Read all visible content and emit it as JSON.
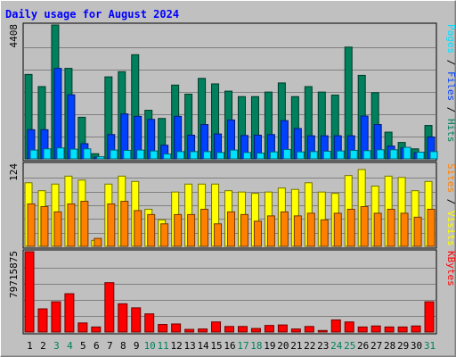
{
  "chart_data": {
    "type": "bar",
    "title": "Daily usage for August 2024",
    "categories": [
      "1",
      "2",
      "3",
      "4",
      "5",
      "6",
      "7",
      "8",
      "9",
      "10",
      "11",
      "12",
      "13",
      "14",
      "15",
      "16",
      "17",
      "18",
      "19",
      "20",
      "21",
      "22",
      "23",
      "24",
      "25",
      "26",
      "27",
      "28",
      "29",
      "30",
      "31"
    ],
    "weekend_days": [
      3,
      4,
      10,
      11,
      17,
      18,
      24,
      25,
      31
    ],
    "colors": {
      "hits": "#00805c",
      "files": "#0040ff",
      "pages": "#00e0ff",
      "visits": "#ffff00",
      "sites": "#ff8000",
      "kbytes": "#ff0000",
      "weekend_label": "#00805c",
      "weekday_label": "#000000",
      "title": "#0000ff"
    },
    "panels": [
      {
        "id": "top",
        "ymax": 4408,
        "ymax_label": "4408",
        "right_label": [
          "Pages",
          " / ",
          "Files",
          " / ",
          "Hits"
        ],
        "right_label_colors": [
          "#00e0ff",
          "#000000",
          "#0040ff",
          "#000000",
          "#00805c"
        ],
        "series": [
          {
            "name": "Hits",
            "values": [
              2780,
              2380,
              4408,
              2980,
              1370,
              170,
              2700,
              2870,
              3430,
              1600,
              1330,
              2430,
              2130,
              2650,
              2470,
              2230,
              2050,
              2050,
              2200,
              2500,
              2050,
              2380,
              2200,
              2100,
              3680,
              2750,
              2180,
              880,
              540,
              330,
              1100
            ]
          },
          {
            "name": "Files",
            "values": [
              960,
              960,
              2980,
              2110,
              500,
              60,
              800,
              1480,
              1400,
              1300,
              450,
              1400,
              780,
              1130,
              820,
              1280,
              770,
              780,
              800,
              1260,
              1000,
              760,
              760,
              760,
              760,
              1410,
              1130,
              420,
              360,
              200,
              720
            ]
          },
          {
            "name": "Pages",
            "values": [
              290,
              330,
              360,
              320,
              330,
              70,
              290,
              280,
              290,
              260,
              160,
              240,
              240,
              240,
              210,
              290,
              210,
              190,
              230,
              310,
              230,
              240,
              250,
              260,
              280,
              270,
              300,
              300,
              380,
              220,
              240
            ]
          }
        ]
      },
      {
        "id": "mid",
        "ymax": 124,
        "ymax_label": "124",
        "right_label": [
          "Sites",
          " / ",
          "Visits"
        ],
        "right_label_colors": [
          "#ff8000",
          "#000000",
          "#ffff00"
        ],
        "series": [
          {
            "name": "Visits",
            "values": [
              96,
              84,
              94,
              106,
              100,
              9,
              94,
              106,
              98,
              56,
              40,
              82,
              94,
              94,
              94,
              84,
              82,
              80,
              82,
              88,
              86,
              96,
              82,
              80,
              107,
              116,
              91,
              106,
              104,
              84,
              98
            ]
          },
          {
            "name": "Sites",
            "values": [
              64,
              60,
              52,
              64,
              68,
              12,
              64,
              68,
              54,
              48,
              34,
              48,
              48,
              56,
              34,
              52,
              48,
              38,
              46,
              52,
              46,
              50,
              40,
              50,
              56,
              60,
              50,
              56,
              50,
              44,
              56
            ]
          }
        ]
      },
      {
        "id": "bot",
        "ymax": 79715875,
        "ymax_label": "79715875",
        "right_label": [
          "KBytes"
        ],
        "right_label_colors": [
          "#ff0000"
        ],
        "series": [
          {
            "name": "KBytes",
            "values": [
              79715875,
              23000000,
              30000000,
              38000000,
              9000000,
              5000000,
              49000000,
              28000000,
              24000000,
              18000000,
              7500000,
              8000000,
              2600000,
              3000000,
              10000000,
              5500000,
              5500000,
              3500000,
              6500000,
              7000000,
              3000000,
              5500000,
              1500000,
              12000000,
              10000000,
              5000000,
              6000000,
              5000000,
              5000000,
              6000000,
              30000000
            ]
          }
        ]
      }
    ]
  }
}
